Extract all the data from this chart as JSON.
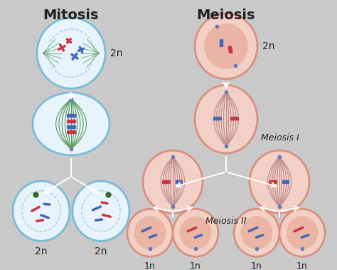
{
  "bg_color": "#c9c9c9",
  "title_mitosis": "Mitosis",
  "title_meiosis": "Meiosis",
  "label_meiosis_I": "Meiosis I",
  "label_meiosis_II": "Meiosis II",
  "cell_blue_outer": "#7bbbd8",
  "cell_blue_fill": "#e8f4fb",
  "cell_pink_outer": "#d99080",
  "cell_pink_fill": "#f2d0c5",
  "cell_pink_inner": "#ebb5a5",
  "spindle_green": "#5a9a5a",
  "spindle_pink": "#c09090",
  "chr_red": "#cc3344",
  "chr_blue": "#4466bb",
  "arrow_color": "#ffffff",
  "text_color": "#222222",
  "nucleus_dash": "#aaccdd"
}
